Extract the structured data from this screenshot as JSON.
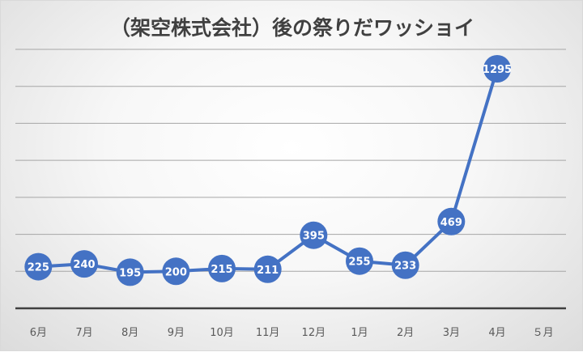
{
  "chart_data": {
    "type": "line",
    "title": "（架空株式会社）後の祭りだワッショイ",
    "categories": [
      "6月",
      "7月",
      "8月",
      "9月",
      "10月",
      "11月",
      "12月",
      "1月",
      "2月",
      "3月",
      "4月",
      "５月"
    ],
    "series": [
      {
        "values": [
          225,
          240,
          195,
          200,
          215,
          211,
          395,
          255,
          233,
          469,
          1295,
          null
        ]
      }
    ],
    "ylim": [
      0,
      1400
    ],
    "grid": true,
    "colors": {
      "line": "#4472c4",
      "marker": "#4472c4",
      "label": "#ffffff",
      "grid": "#a6a6a6",
      "axis": "#404040"
    }
  }
}
